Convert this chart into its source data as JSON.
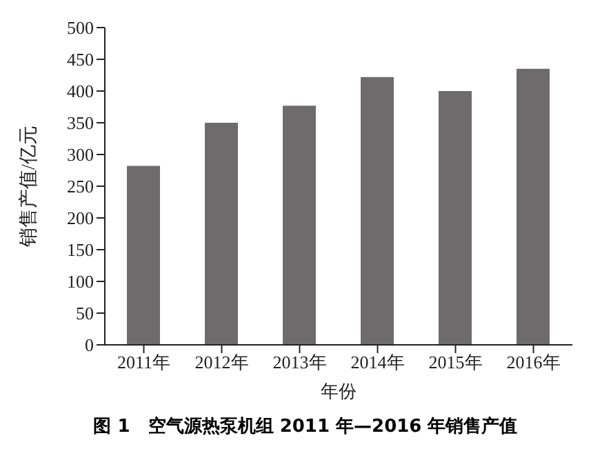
{
  "chart_data": {
    "type": "bar",
    "title": "图 1　空气源热泵机组 2011 年—2016 年销售产值",
    "xlabel": "年份",
    "ylabel": "销售产值/亿元",
    "categories": [
      "2011年",
      "2012年",
      "2013年",
      "2014年",
      "2015年",
      "2016年"
    ],
    "values": [
      282,
      350,
      377,
      422,
      400,
      435
    ],
    "color": "#6d6b6c",
    "ylim": [
      0,
      500
    ],
    "yticks": [
      0,
      50,
      100,
      150,
      200,
      250,
      300,
      350,
      400,
      450,
      500
    ],
    "grid": false,
    "legend": false
  }
}
